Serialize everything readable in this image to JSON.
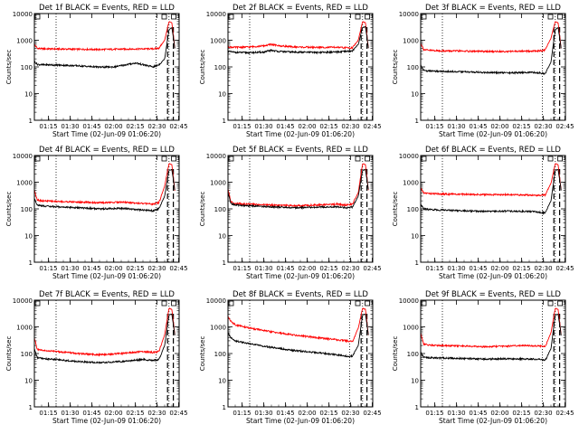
{
  "figure": {
    "shared_ylabel": "Counts/sec",
    "shared_xlabel": "Start Time (02-Jun-09 01:06:20)",
    "x_ticks": [
      "01:15",
      "01:30",
      "01:45",
      "02:00",
      "02:15",
      "02:30",
      "02:45"
    ],
    "y_ticks": [
      "1",
      "10",
      "100",
      "1000",
      "10000"
    ],
    "colors": {
      "events": "#000000",
      "lld": "#ff0000",
      "axes": "#000000"
    }
  },
  "chart_data": [
    {
      "type": "line",
      "title": "Det 1f BLACK = Events, RED = LLD",
      "x_unit": "minutes after 01:06:20",
      "xlim": [
        0,
        100
      ],
      "ylim": [
        1,
        10000
      ],
      "yscale": "log",
      "xlabel": "Start Time (02-Jun-09 01:06:20)",
      "ylabel": "Counts/sec",
      "vlines_dotted": [
        15,
        84,
        93
      ],
      "vlines_dashed": [
        92,
        96
      ],
      "series": [
        {
          "name": "Events",
          "color": "#000000",
          "x": [
            0,
            2,
            5,
            15,
            30,
            45,
            55,
            70,
            82,
            86,
            90,
            93,
            95,
            97
          ],
          "y": [
            160,
            125,
            120,
            118,
            110,
            98,
            100,
            140,
            100,
            120,
            200,
            2500,
            3000,
            500
          ]
        },
        {
          "name": "LLD",
          "color": "#ff0000",
          "x": [
            0,
            2,
            5,
            15,
            30,
            45,
            55,
            70,
            82,
            86,
            90,
            93,
            95,
            97
          ],
          "y": [
            700,
            500,
            480,
            470,
            460,
            450,
            460,
            470,
            480,
            500,
            1000,
            5000,
            4500,
            500
          ]
        }
      ]
    },
    {
      "type": "line",
      "title": "Det 2f BLACK = Events, RED = LLD",
      "x_unit": "minutes after 01:06:20",
      "xlim": [
        0,
        100
      ],
      "ylim": [
        1,
        10000
      ],
      "yscale": "log",
      "xlabel": "Start Time (02-Jun-09 01:06:20)",
      "ylabel": "Counts/sec",
      "vlines_dotted": [
        15,
        84,
        93
      ],
      "vlines_dashed": [
        92,
        96
      ],
      "series": [
        {
          "name": "Events",
          "color": "#000000",
          "x": [
            0,
            5,
            15,
            25,
            30,
            35,
            45,
            60,
            75,
            82,
            86,
            90,
            93,
            95,
            97
          ],
          "y": [
            380,
            350,
            340,
            360,
            420,
            380,
            360,
            350,
            360,
            380,
            400,
            700,
            3000,
            3200,
            500
          ]
        },
        {
          "name": "LLD",
          "color": "#ff0000",
          "x": [
            0,
            5,
            15,
            25,
            30,
            35,
            45,
            60,
            75,
            82,
            86,
            90,
            93,
            95,
            97
          ],
          "y": [
            560,
            540,
            560,
            620,
            700,
            620,
            560,
            540,
            540,
            520,
            520,
            1000,
            5000,
            4500,
            500
          ]
        }
      ]
    },
    {
      "type": "line",
      "title": "Det 3f BLACK = Events, RED = LLD",
      "x_unit": "minutes after 01:06:20",
      "xlim": [
        0,
        100
      ],
      "ylim": [
        1,
        10000
      ],
      "yscale": "log",
      "xlabel": "Start Time (02-Jun-09 01:06:20)",
      "ylabel": "Counts/sec",
      "vlines_dotted": [
        15,
        84,
        93
      ],
      "vlines_dashed": [
        92,
        96
      ],
      "series": [
        {
          "name": "Events",
          "color": "#000000",
          "x": [
            0,
            2,
            5,
            15,
            30,
            45,
            60,
            75,
            82,
            86,
            90,
            93,
            95,
            97
          ],
          "y": [
            120,
            75,
            70,
            68,
            65,
            62,
            60,
            62,
            60,
            55,
            150,
            2500,
            3000,
            500
          ]
        },
        {
          "name": "LLD",
          "color": "#ff0000",
          "x": [
            0,
            2,
            5,
            15,
            30,
            45,
            60,
            75,
            82,
            86,
            90,
            93,
            95,
            97
          ],
          "y": [
            800,
            450,
            420,
            400,
            390,
            380,
            380,
            390,
            400,
            420,
            1200,
            5000,
            4500,
            500
          ]
        }
      ]
    },
    {
      "type": "line",
      "title": "Det 4f BLACK = Events, RED = LLD",
      "x_unit": "minutes after 01:06:20",
      "xlim": [
        0,
        100
      ],
      "ylim": [
        1,
        10000
      ],
      "yscale": "log",
      "xlabel": "Start Time (02-Jun-09 01:06:20)",
      "ylabel": "Counts/sec",
      "vlines_dotted": [
        15,
        84,
        93
      ],
      "vlines_dashed": [
        92,
        96
      ],
      "series": [
        {
          "name": "Events",
          "color": "#000000",
          "x": [
            0,
            2,
            5,
            15,
            30,
            45,
            60,
            75,
            82,
            86,
            90,
            93,
            95,
            97
          ],
          "y": [
            250,
            140,
            130,
            120,
            110,
            100,
            105,
            90,
            85,
            100,
            300,
            2800,
            3000,
            500
          ]
        },
        {
          "name": "LLD",
          "color": "#ff0000",
          "x": [
            0,
            2,
            5,
            15,
            30,
            45,
            60,
            75,
            82,
            86,
            90,
            93,
            95,
            97
          ],
          "y": [
            500,
            220,
            200,
            190,
            180,
            170,
            180,
            160,
            150,
            170,
            700,
            5000,
            4500,
            500
          ]
        }
      ]
    },
    {
      "type": "line",
      "title": "Det 5f BLACK = Events, RED = LLD",
      "x_unit": "minutes after 01:06:20",
      "xlim": [
        0,
        100
      ],
      "ylim": [
        1,
        10000
      ],
      "yscale": "log",
      "xlabel": "Start Time (02-Jun-09 01:06:20)",
      "ylabel": "Counts/sec",
      "vlines_dotted": [
        15,
        84,
        93
      ],
      "vlines_dashed": [
        92,
        96
      ],
      "series": [
        {
          "name": "Events",
          "color": "#000000",
          "x": [
            0,
            2,
            5,
            15,
            30,
            45,
            60,
            75,
            82,
            86,
            90,
            93,
            95,
            97
          ],
          "y": [
            400,
            160,
            140,
            130,
            120,
            110,
            115,
            120,
            110,
            115,
            300,
            2800,
            3000,
            500
          ]
        },
        {
          "name": "LLD",
          "color": "#ff0000",
          "x": [
            0,
            2,
            5,
            15,
            30,
            45,
            60,
            75,
            82,
            86,
            90,
            93,
            95,
            97
          ],
          "y": [
            550,
            180,
            160,
            150,
            140,
            130,
            140,
            150,
            140,
            150,
            400,
            5000,
            4500,
            500
          ]
        }
      ]
    },
    {
      "type": "line",
      "title": "Det 6f BLACK = Events, RED = LLD",
      "x_unit": "minutes after 01:06:20",
      "xlim": [
        0,
        100
      ],
      "ylim": [
        1,
        10000
      ],
      "yscale": "log",
      "xlabel": "Start Time (02-Jun-09 01:06:20)",
      "ylabel": "Counts/sec",
      "vlines_dotted": [
        15,
        84,
        93
      ],
      "vlines_dashed": [
        92,
        96
      ],
      "series": [
        {
          "name": "Events",
          "color": "#000000",
          "x": [
            0,
            2,
            5,
            15,
            30,
            45,
            60,
            75,
            82,
            86,
            90,
            93,
            95,
            97
          ],
          "y": [
            150,
            100,
            95,
            90,
            85,
            80,
            82,
            80,
            75,
            70,
            200,
            2800,
            3000,
            500
          ]
        },
        {
          "name": "LLD",
          "color": "#ff0000",
          "x": [
            0,
            2,
            5,
            15,
            30,
            45,
            60,
            75,
            82,
            86,
            90,
            93,
            95,
            97
          ],
          "y": [
            600,
            400,
            380,
            360,
            350,
            340,
            340,
            330,
            320,
            330,
            900,
            5000,
            4500,
            500
          ]
        }
      ]
    },
    {
      "type": "line",
      "title": "Det 7f BLACK = Events, RED = LLD",
      "x_unit": "minutes after 01:06:20",
      "xlim": [
        0,
        100
      ],
      "ylim": [
        1,
        10000
      ],
      "yscale": "log",
      "xlabel": "Start Time (02-Jun-09 01:06:20)",
      "ylabel": "Counts/sec",
      "vlines_dotted": [
        15,
        84,
        93
      ],
      "vlines_dashed": [
        92,
        96
      ],
      "series": [
        {
          "name": "Events",
          "color": "#000000",
          "x": [
            0,
            2,
            5,
            15,
            30,
            45,
            60,
            75,
            82,
            86,
            90,
            93,
            95,
            97
          ],
          "y": [
            150,
            70,
            65,
            60,
            50,
            45,
            50,
            60,
            55,
            60,
            200,
            2800,
            3000,
            500
          ]
        },
        {
          "name": "LLD",
          "color": "#ff0000",
          "x": [
            0,
            2,
            5,
            15,
            30,
            45,
            60,
            75,
            82,
            86,
            90,
            93,
            95,
            97
          ],
          "y": [
            400,
            140,
            130,
            120,
            100,
            90,
            100,
            120,
            110,
            120,
            500,
            5000,
            4500,
            500
          ]
        }
      ]
    },
    {
      "type": "line",
      "title": "Det 8f BLACK = Events, RED = LLD",
      "x_unit": "minutes after 01:06:20",
      "xlim": [
        0,
        100
      ],
      "ylim": [
        1,
        10000
      ],
      "yscale": "log",
      "xlabel": "Start Time (02-Jun-09 01:06:20)",
      "ylabel": "Counts/sec",
      "vlines_dotted": [
        15,
        84,
        93
      ],
      "vlines_dashed": [
        92,
        96
      ],
      "series": [
        {
          "name": "Events",
          "color": "#000000",
          "x": [
            0,
            2,
            5,
            15,
            30,
            45,
            60,
            75,
            82,
            86,
            90,
            93,
            95,
            97
          ],
          "y": [
            600,
            400,
            300,
            230,
            170,
            130,
            110,
            90,
            80,
            80,
            200,
            2800,
            3000,
            500
          ]
        },
        {
          "name": "LLD",
          "color": "#ff0000",
          "x": [
            0,
            2,
            5,
            15,
            30,
            45,
            60,
            75,
            82,
            86,
            90,
            93,
            95,
            97
          ],
          "y": [
            2500,
            1600,
            1200,
            900,
            650,
            500,
            400,
            330,
            300,
            280,
            900,
            5000,
            4500,
            500
          ]
        }
      ]
    },
    {
      "type": "line",
      "title": "Det 9f BLACK = Events, RED = LLD",
      "x_unit": "minutes after 01:06:20",
      "xlim": [
        0,
        100
      ],
      "ylim": [
        1,
        10000
      ],
      "yscale": "log",
      "xlabel": "Start Time (02-Jun-09 01:06:20)",
      "ylabel": "Counts/sec",
      "vlines_dotted": [
        15,
        84,
        93
      ],
      "vlines_dashed": [
        92,
        96
      ],
      "series": [
        {
          "name": "Events",
          "color": "#000000",
          "x": [
            0,
            2,
            5,
            15,
            30,
            45,
            60,
            75,
            82,
            86,
            90,
            93,
            95,
            97
          ],
          "y": [
            120,
            75,
            70,
            68,
            65,
            62,
            64,
            62,
            60,
            55,
            150,
            2800,
            3000,
            500
          ]
        },
        {
          "name": "LLD",
          "color": "#ff0000",
          "x": [
            0,
            2,
            5,
            15,
            30,
            45,
            60,
            75,
            82,
            86,
            90,
            93,
            95,
            97
          ],
          "y": [
            600,
            230,
            210,
            200,
            190,
            180,
            190,
            200,
            190,
            180,
            600,
            5000,
            4500,
            500
          ]
        }
      ]
    }
  ]
}
